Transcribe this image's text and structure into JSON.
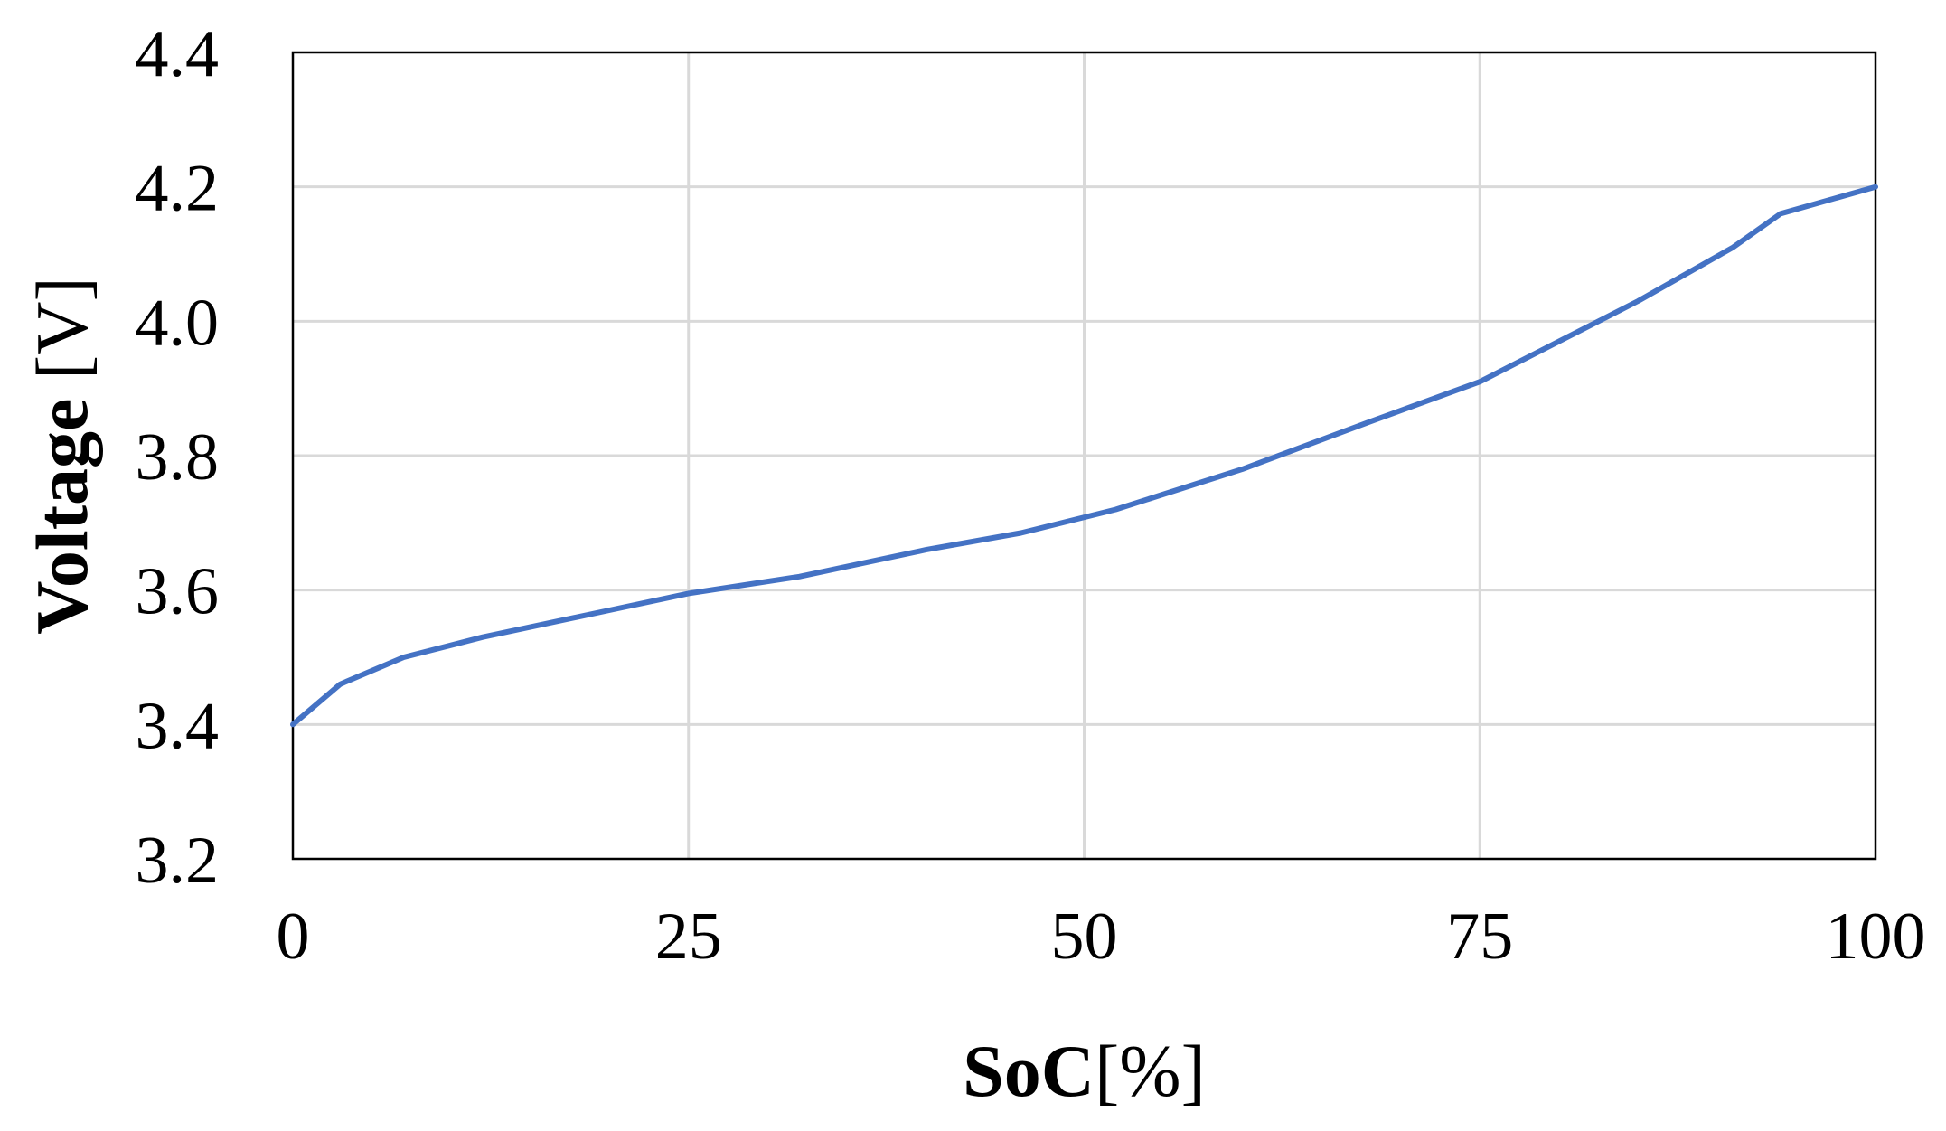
{
  "chart_data": {
    "type": "line",
    "title": "",
    "xlabel_bold": "SoC",
    "xlabel_rest": "[%]",
    "ylabel_bold": "Voltage",
    "ylabel_rest": " [V]",
    "xlim": [
      0,
      100
    ],
    "ylim": [
      3.2,
      4.4
    ],
    "xticks": [
      0,
      25,
      50,
      75,
      100
    ],
    "xtick_labels": [
      "0",
      "25",
      "50",
      "75",
      "100"
    ],
    "yticks": [
      3.2,
      3.4,
      3.6,
      3.8,
      4.0,
      4.2,
      4.4
    ],
    "ytick_labels": [
      "3.2",
      "3.4",
      "3.6",
      "3.8",
      "4.0",
      "4.2",
      "4.4"
    ],
    "grid": true,
    "legend": "none",
    "series": [
      {
        "color": "#4472C4",
        "x": [
          0,
          3,
          7,
          12,
          20,
          25,
          32,
          40,
          46,
          52,
          60,
          68,
          75,
          80,
          85,
          91,
          94,
          100
        ],
        "y": [
          3.4,
          3.46,
          3.5,
          3.53,
          3.57,
          3.595,
          3.62,
          3.66,
          3.685,
          3.72,
          3.78,
          3.85,
          3.91,
          3.97,
          4.03,
          4.11,
          4.16,
          4.2
        ]
      }
    ],
    "colors": {
      "grid": "#D9D9D9",
      "axis": "#000000",
      "line": "#4472C4"
    }
  }
}
